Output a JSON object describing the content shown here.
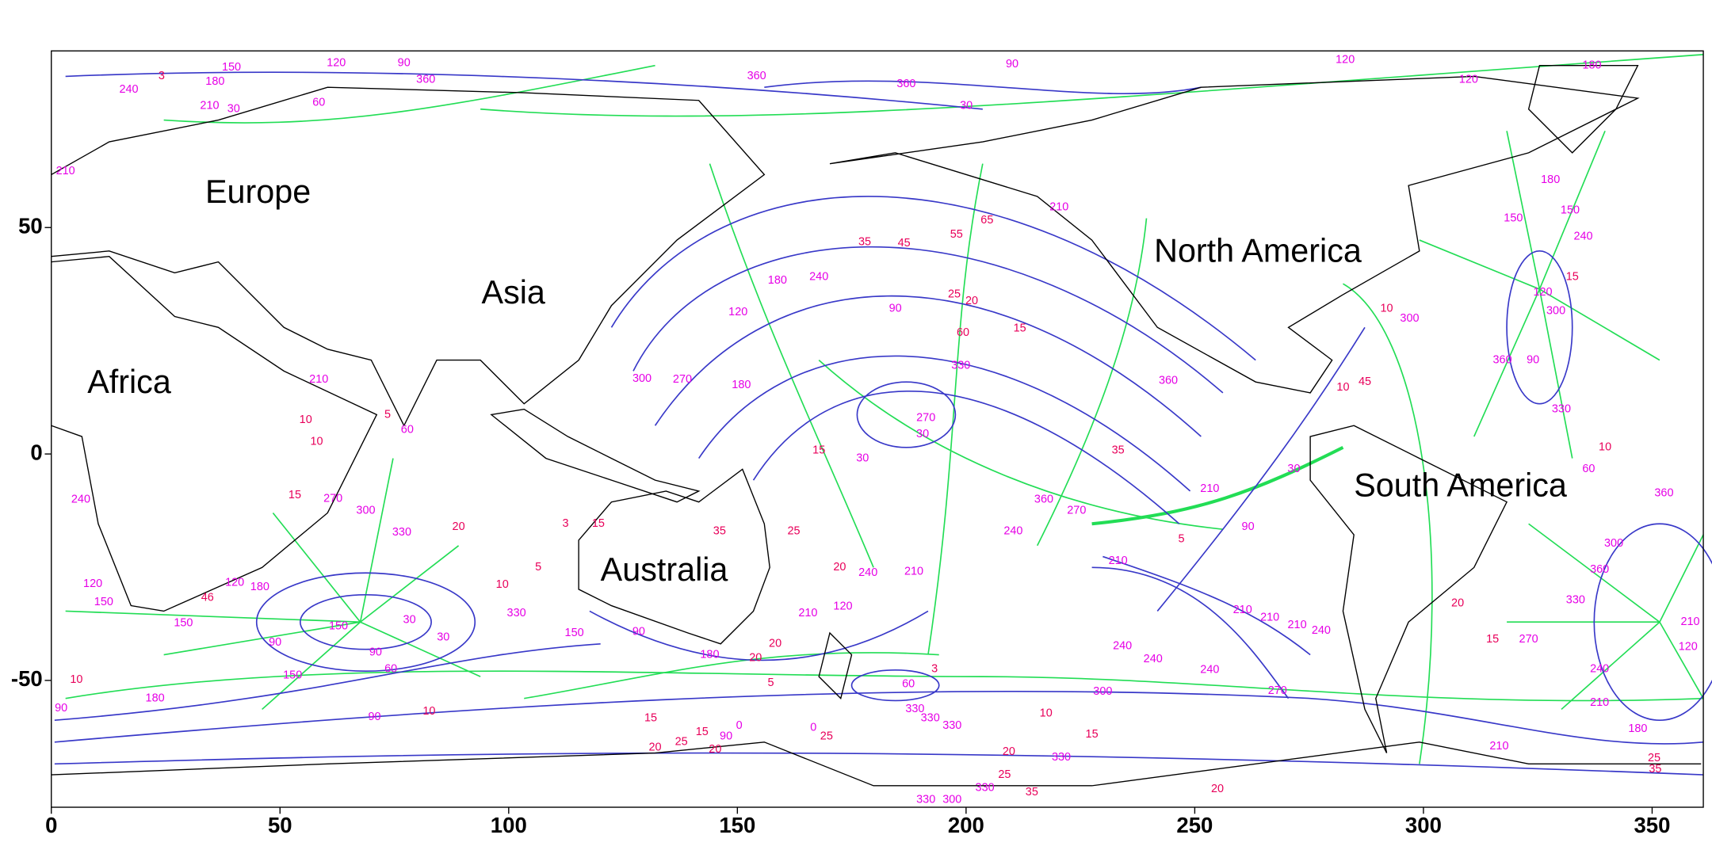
{
  "chart_data": {
    "type": "contour-map",
    "xlim": [
      0,
      360
    ],
    "ylim": [
      -78,
      89
    ],
    "xticks": [
      0,
      50,
      100,
      150,
      200,
      250,
      300,
      350
    ],
    "yticks": [
      -50,
      0,
      50
    ],
    "regions": [
      "Europe",
      "Asia",
      "Africa",
      "Australia",
      "North America",
      "South America"
    ],
    "contour_labels": [
      {
        "value": 150,
        "color": "#e600e6"
      },
      {
        "value": 120,
        "color": "#e600e6"
      },
      {
        "value": 90,
        "color": "#e600e6"
      },
      {
        "value": 180,
        "color": "#e600e6"
      },
      {
        "value": 240,
        "color": "#e600e6"
      },
      {
        "value": 3,
        "color": "#e8005a"
      },
      {
        "value": 210,
        "color": "#e600e6"
      },
      {
        "value": 30,
        "color": "#e600e6"
      },
      {
        "value": 60,
        "color": "#e600e6"
      },
      {
        "value": 360,
        "color": "#e600e6"
      },
      {
        "value": 360,
        "color": "#e600e6"
      },
      {
        "value": 360,
        "color": "#e600e6"
      },
      {
        "value": 30,
        "color": "#e600e6"
      },
      {
        "value": 90,
        "color": "#e600e6"
      },
      {
        "value": 120,
        "color": "#e600e6"
      },
      {
        "value": 120,
        "color": "#e600e6"
      },
      {
        "value": 180,
        "color": "#e600e6"
      },
      {
        "value": 210,
        "color": "#e600e6"
      },
      {
        "value": 180,
        "color": "#e600e6"
      },
      {
        "value": 150,
        "color": "#e600e6"
      },
      {
        "value": 240,
        "color": "#e600e6"
      },
      {
        "value": 150,
        "color": "#e600e6"
      },
      {
        "value": 35,
        "color": "#e8005a"
      },
      {
        "value": 45,
        "color": "#e8005a"
      },
      {
        "value": 55,
        "color": "#e8005a"
      },
      {
        "value": 65,
        "color": "#e8005a"
      },
      {
        "value": 210,
        "color": "#e600e6"
      },
      {
        "value": 180,
        "color": "#e600e6"
      },
      {
        "value": 240,
        "color": "#e600e6"
      },
      {
        "value": 120,
        "color": "#e600e6"
      },
      {
        "value": 90,
        "color": "#e600e6"
      },
      {
        "value": 25,
        "color": "#e8005a"
      },
      {
        "value": 20,
        "color": "#e8005a"
      },
      {
        "value": 60,
        "color": "#e8005a"
      },
      {
        "value": 15,
        "color": "#e8005a"
      },
      {
        "value": 330,
        "color": "#e600e6"
      },
      {
        "value": 300,
        "color": "#e600e6"
      },
      {
        "value": 270,
        "color": "#e600e6"
      },
      {
        "value": 180,
        "color": "#e600e6"
      },
      {
        "value": 210,
        "color": "#e600e6"
      },
      {
        "value": 10,
        "color": "#e8005a"
      },
      {
        "value": 10,
        "color": "#e8005a"
      },
      {
        "value": 15,
        "color": "#e8005a"
      },
      {
        "value": 240,
        "color": "#e600e6"
      },
      {
        "value": 270,
        "color": "#e600e6"
      },
      {
        "value": 300,
        "color": "#e600e6"
      },
      {
        "value": 330,
        "color": "#e600e6"
      },
      {
        "value": 20,
        "color": "#e8005a"
      },
      {
        "value": 15,
        "color": "#e8005a"
      },
      {
        "value": 30,
        "color": "#e600e6"
      },
      {
        "value": 270,
        "color": "#e600e6"
      },
      {
        "value": 30,
        "color": "#e600e6"
      },
      {
        "value": 35,
        "color": "#e8005a"
      },
      {
        "value": 360,
        "color": "#e600e6"
      },
      {
        "value": 360,
        "color": "#e600e6"
      },
      {
        "value": 270,
        "color": "#e600e6"
      },
      {
        "value": 240,
        "color": "#e600e6"
      },
      {
        "value": 210,
        "color": "#e600e6"
      },
      {
        "value": 5,
        "color": "#e8005a"
      },
      {
        "value": 90,
        "color": "#e600e6"
      },
      {
        "value": 210,
        "color": "#e600e6"
      },
      {
        "value": 30,
        "color": "#e600e6"
      },
      {
        "value": 60,
        "color": "#e600e6"
      },
      {
        "value": 10,
        "color": "#e8005a"
      },
      {
        "value": 360,
        "color": "#e600e6"
      },
      {
        "value": 330,
        "color": "#e600e6"
      },
      {
        "value": 360,
        "color": "#e600e6"
      },
      {
        "value": 90,
        "color": "#e600e6"
      },
      {
        "value": 300,
        "color": "#e600e6"
      },
      {
        "value": 120,
        "color": "#e600e6"
      },
      {
        "value": 15,
        "color": "#e8005a"
      },
      {
        "value": 10,
        "color": "#e8005a"
      },
      {
        "value": 330,
        "color": "#e600e6"
      },
      {
        "value": 360,
        "color": "#e600e6"
      },
      {
        "value": 300,
        "color": "#e600e6"
      },
      {
        "value": 20,
        "color": "#e8005a"
      },
      {
        "value": 15,
        "color": "#e8005a"
      },
      {
        "value": 270,
        "color": "#e600e6"
      },
      {
        "value": 240,
        "color": "#e600e6"
      },
      {
        "value": 210,
        "color": "#e600e6"
      },
      {
        "value": 180,
        "color": "#e600e6"
      },
      {
        "value": 120,
        "color": "#e600e6"
      },
      {
        "value": 210,
        "color": "#e600e6"
      },
      {
        "value": 210,
        "color": "#e600e6"
      },
      {
        "value": 210,
        "color": "#e600e6"
      },
      {
        "value": 210,
        "color": "#e600e6"
      },
      {
        "value": 240,
        "color": "#e600e6"
      },
      {
        "value": 240,
        "color": "#e600e6"
      },
      {
        "value": 240,
        "color": "#e600e6"
      },
      {
        "value": 240,
        "color": "#e600e6"
      },
      {
        "value": 270,
        "color": "#e600e6"
      },
      {
        "value": 300,
        "color": "#e600e6"
      },
      {
        "value": 10,
        "color": "#e8005a"
      },
      {
        "value": 15,
        "color": "#e8005a"
      },
      {
        "value": 330,
        "color": "#e600e6"
      },
      {
        "value": 330,
        "color": "#e600e6"
      },
      {
        "value": 330,
        "color": "#e600e6"
      },
      {
        "value": 330,
        "color": "#e600e6"
      },
      {
        "value": 20,
        "color": "#e8005a"
      },
      {
        "value": 25,
        "color": "#e8005a"
      },
      {
        "value": 330,
        "color": "#e600e6"
      },
      {
        "value": 35,
        "color": "#e8005a"
      },
      {
        "value": 330,
        "color": "#e600e6"
      },
      {
        "value": 300,
        "color": "#e600e6"
      },
      {
        "value": 20,
        "color": "#e8005a"
      },
      {
        "value": 25,
        "color": "#e8005a"
      },
      {
        "value": 35,
        "color": "#e8005a"
      },
      {
        "value": 210,
        "color": "#e600e6"
      },
      {
        "value": 180,
        "color": "#e600e6"
      },
      {
        "value": 120,
        "color": "#e600e6"
      },
      {
        "value": 150,
        "color": "#e600e6"
      },
      {
        "value": 150,
        "color": "#e600e6"
      },
      {
        "value": 150,
        "color": "#e600e6"
      },
      {
        "value": 90,
        "color": "#e600e6"
      },
      {
        "value": 90,
        "color": "#e600e6"
      },
      {
        "value": 60,
        "color": "#e600e6"
      },
      {
        "value": 30,
        "color": "#e600e6"
      },
      {
        "value": 30,
        "color": "#e600e6"
      },
      {
        "value": 10,
        "color": "#e8005a"
      },
      {
        "value": 5,
        "color": "#e8005a"
      },
      {
        "value": 10,
        "color": "#e8005a"
      },
      {
        "value": 120,
        "color": "#e600e6"
      },
      {
        "value": 150,
        "color": "#e600e6"
      },
      {
        "value": 180,
        "color": "#e600e6"
      },
      {
        "value": 90,
        "color": "#e600e6"
      },
      {
        "value": 90,
        "color": "#e600e6"
      },
      {
        "value": 10,
        "color": "#e8005a"
      },
      {
        "value": 46,
        "color": "#e8005a"
      },
      {
        "value": 35,
        "color": "#e8005a"
      },
      {
        "value": 25,
        "color": "#e8005a"
      },
      {
        "value": 20,
        "color": "#e8005a"
      },
      {
        "value": 240,
        "color": "#e600e6"
      },
      {
        "value": 210,
        "color": "#e600e6"
      },
      {
        "value": 210,
        "color": "#e600e6"
      },
      {
        "value": 120,
        "color": "#e600e6"
      },
      {
        "value": 90,
        "color": "#e600e6"
      },
      {
        "value": 150,
        "color": "#e600e6"
      },
      {
        "value": 180,
        "color": "#e600e6"
      },
      {
        "value": 20,
        "color": "#e8005a"
      },
      {
        "value": 20,
        "color": "#e8005a"
      },
      {
        "value": 5,
        "color": "#e8005a"
      },
      {
        "value": 3,
        "color": "#e8005a"
      },
      {
        "value": 60,
        "color": "#e600e6"
      },
      {
        "value": 15,
        "color": "#e8005a"
      },
      {
        "value": 15,
        "color": "#e8005a"
      },
      {
        "value": 90,
        "color": "#e600e6"
      },
      {
        "value": 0,
        "color": "#e600e6"
      },
      {
        "value": 0,
        "color": "#e600e6"
      },
      {
        "value": 25,
        "color": "#e8005a"
      },
      {
        "value": 20,
        "color": "#e8005a"
      },
      {
        "value": 25,
        "color": "#e8005a"
      },
      {
        "value": 20,
        "color": "#e8005a"
      },
      {
        "value": 15,
        "color": "#e8005a"
      },
      {
        "value": 3,
        "color": "#e8005a"
      },
      {
        "value": 5,
        "color": "#e8005a"
      },
      {
        "value": 60,
        "color": "#e600e6"
      },
      {
        "value": 330,
        "color": "#e600e6"
      },
      {
        "value": 300,
        "color": "#e600e6"
      },
      {
        "value": 10,
        "color": "#e8005a"
      },
      {
        "value": 45,
        "color": "#e8005a"
      }
    ]
  }
}
